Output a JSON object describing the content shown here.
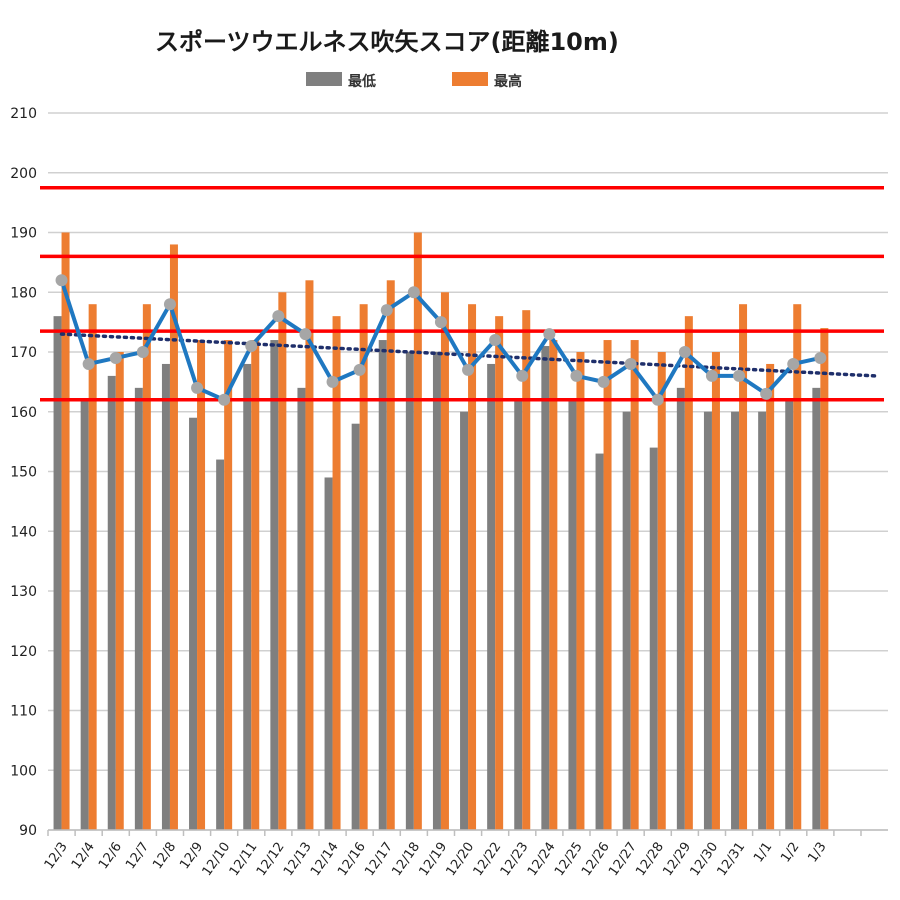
{
  "chart_data": {
    "type": "bar",
    "title": "スポーツウエルネス吹矢スコア(距離10m)",
    "xlabel": "",
    "ylabel": "",
    "ylim": [
      90,
      210
    ],
    "y_ticks": [
      90,
      100,
      110,
      120,
      130,
      140,
      150,
      160,
      170,
      180,
      190,
      200,
      210
    ],
    "grid": true,
    "legend_position": "top",
    "categories": [
      "12/3",
      "12/4",
      "12/6",
      "12/7",
      "12/8",
      "12/9",
      "12/10",
      "12/11",
      "12/12",
      "12/13",
      "12/14",
      "12/16",
      "12/17",
      "12/18",
      "12/19",
      "12/20",
      "12/22",
      "12/23",
      "12/24",
      "12/25",
      "12/26",
      "12/27",
      "12/28",
      "12/29",
      "12/30",
      "12/31",
      "1/1",
      "1/2",
      "1/3"
    ],
    "series": [
      {
        "name": "最低",
        "kind": "bar",
        "color": "#7f7f7f",
        "values": [
          176,
          162,
          166,
          164,
          168,
          159,
          152,
          168,
          172,
          164,
          149,
          158,
          172,
          170,
          170,
          160,
          168,
          162,
          171,
          162,
          153,
          160,
          154,
          164,
          160,
          160,
          160,
          162,
          164
        ]
      },
      {
        "name": "最高",
        "kind": "bar",
        "color": "#ed7d31",
        "values": [
          190,
          178,
          170,
          178,
          188,
          172,
          172,
          172,
          180,
          182,
          176,
          178,
          182,
          190,
          180,
          178,
          176,
          177,
          172,
          170,
          172,
          172,
          170,
          176,
          170,
          178,
          168,
          178,
          174
        ]
      },
      {
        "kind": "line",
        "color": "#1f78c1",
        "marker_color": "#a6a6a6",
        "values": [
          182,
          168,
          169,
          170,
          178,
          164,
          162,
          171,
          176,
          173,
          165,
          167,
          177,
          180,
          175,
          167,
          172,
          166,
          173,
          166,
          165,
          168,
          162,
          170,
          166,
          166,
          163,
          168,
          169
        ]
      }
    ],
    "trendline": {
      "style": "dotted",
      "color": "#1f2f6b",
      "start": 173,
      "end": 166
    },
    "reference_lines": {
      "color": "#ff0000",
      "values": [
        162,
        173.5,
        186,
        197.5
      ]
    }
  }
}
